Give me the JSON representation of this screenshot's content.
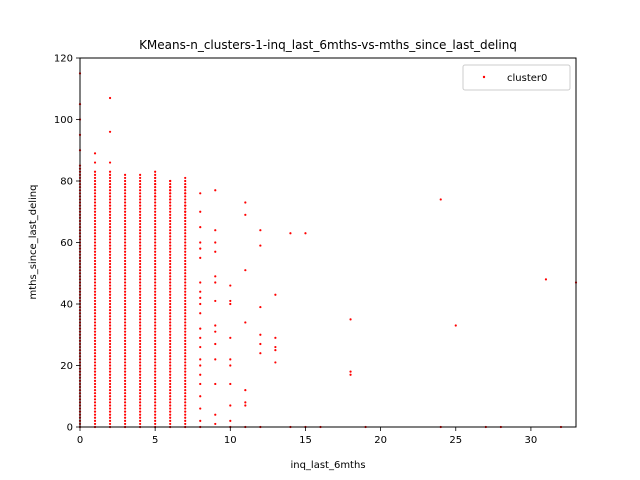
{
  "chart_data": {
    "type": "scatter",
    "title": "KMeans-n_clusters-1-inq_last_6mths-vs-mths_since_last_delinq",
    "xlabel": "inq_last_6mths",
    "ylabel": "mths_since_last_delinq",
    "xlim": [
      0,
      33
    ],
    "ylim": [
      0,
      120
    ],
    "xticks": [
      0,
      5,
      10,
      15,
      20,
      25,
      30
    ],
    "yticks": [
      0,
      20,
      40,
      60,
      80,
      100,
      120
    ],
    "grid": false,
    "legend_position": "top-right",
    "colors": {
      "cluster0": "#ff0000"
    },
    "series": [
      {
        "name": "cluster0",
        "columns": [
          {
            "x": 0,
            "ymin": 0,
            "ymax": 85
          },
          {
            "x": 1,
            "ymin": 0,
            "ymax": 83
          },
          {
            "x": 2,
            "ymin": 0,
            "ymax": 83
          },
          {
            "x": 3,
            "ymin": 0,
            "ymax": 82
          },
          {
            "x": 4,
            "ymin": 0,
            "ymax": 82
          },
          {
            "x": 5,
            "ymin": 0,
            "ymax": 83
          },
          {
            "x": 6,
            "ymin": 0,
            "ymax": 80
          },
          {
            "x": 7,
            "ymin": 0,
            "ymax": 81
          }
        ],
        "points": [
          [
            0,
            115
          ],
          [
            0,
            105
          ],
          [
            0,
            100
          ],
          [
            0,
            95
          ],
          [
            0,
            90
          ],
          [
            1,
            89
          ],
          [
            1,
            86
          ],
          [
            2,
            107
          ],
          [
            2,
            96
          ],
          [
            2,
            86
          ],
          [
            5,
            81
          ],
          [
            5,
            79
          ],
          [
            5,
            77
          ],
          [
            5,
            75
          ],
          [
            6,
            80
          ],
          [
            6,
            78
          ],
          [
            6,
            77
          ],
          [
            6,
            76
          ],
          [
            6,
            74
          ],
          [
            7,
            78
          ],
          [
            7,
            76
          ],
          [
            7,
            72
          ],
          [
            7,
            70
          ],
          [
            7,
            68
          ],
          [
            8,
            76
          ],
          [
            8,
            70
          ],
          [
            8,
            65
          ],
          [
            8,
            60
          ],
          [
            8,
            58
          ],
          [
            8,
            55
          ],
          [
            8,
            47
          ],
          [
            8,
            44
          ],
          [
            8,
            42
          ],
          [
            8,
            40
          ],
          [
            8,
            37
          ],
          [
            8,
            32
          ],
          [
            8,
            29
          ],
          [
            8,
            26
          ],
          [
            8,
            22
          ],
          [
            8,
            20
          ],
          [
            8,
            17
          ],
          [
            8,
            14
          ],
          [
            8,
            10
          ],
          [
            8,
            6
          ],
          [
            8,
            2
          ],
          [
            8,
            0
          ],
          [
            9,
            77
          ],
          [
            9,
            64
          ],
          [
            9,
            60
          ],
          [
            9,
            57
          ],
          [
            9,
            49
          ],
          [
            9,
            47
          ],
          [
            9,
            41
          ],
          [
            9,
            33
          ],
          [
            9,
            31
          ],
          [
            9,
            27
          ],
          [
            9,
            22
          ],
          [
            9,
            14
          ],
          [
            9,
            4
          ],
          [
            9,
            1
          ],
          [
            10,
            46
          ],
          [
            10,
            41
          ],
          [
            10,
            40
          ],
          [
            10,
            29
          ],
          [
            10,
            22
          ],
          [
            10,
            20
          ],
          [
            10,
            14
          ],
          [
            10,
            7
          ],
          [
            10,
            2
          ],
          [
            10,
            0
          ],
          [
            11,
            73
          ],
          [
            11,
            69
          ],
          [
            11,
            51
          ],
          [
            11,
            34
          ],
          [
            11,
            12
          ],
          [
            11,
            8
          ],
          [
            11,
            7
          ],
          [
            11,
            0
          ],
          [
            12,
            64
          ],
          [
            12,
            59
          ],
          [
            12,
            39
          ],
          [
            12,
            30
          ],
          [
            12,
            27
          ],
          [
            12,
            24
          ],
          [
            12,
            0
          ],
          [
            13,
            43
          ],
          [
            13,
            29
          ],
          [
            13,
            26
          ],
          [
            13,
            25
          ],
          [
            13,
            21
          ],
          [
            14,
            63
          ],
          [
            14,
            0
          ],
          [
            15,
            63
          ],
          [
            15,
            0
          ],
          [
            16,
            0
          ],
          [
            18,
            35
          ],
          [
            18,
            18
          ],
          [
            18,
            17
          ],
          [
            19,
            0
          ],
          [
            24,
            74
          ],
          [
            24,
            0
          ],
          [
            25,
            33
          ],
          [
            27,
            0
          ],
          [
            28,
            0
          ],
          [
            31,
            48
          ],
          [
            32,
            0
          ],
          [
            33,
            47
          ]
        ]
      }
    ]
  }
}
